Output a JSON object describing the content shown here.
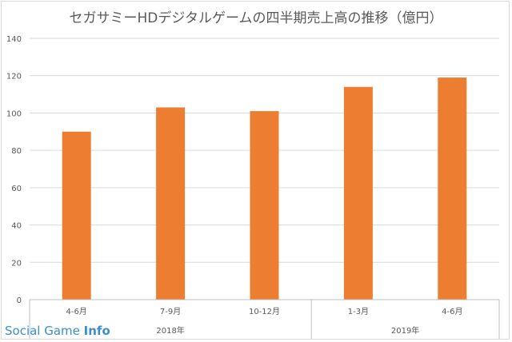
{
  "chart_data": {
    "type": "bar",
    "title": "セガサミーHDデジタルゲームの四半期売上高の推移（億円）",
    "categories": [
      "4-6月",
      "7-9月",
      "10-12月",
      "1-3月",
      "4-6月"
    ],
    "groups": [
      {
        "label": "2018年",
        "start": 0,
        "end": 3
      },
      {
        "label": "2019年",
        "start": 3,
        "end": 5
      }
    ],
    "values": [
      90,
      103,
      101,
      114,
      119
    ],
    "ylim": [
      0,
      140
    ],
    "yticks": [
      0,
      20,
      40,
      60,
      80,
      100,
      120,
      140
    ],
    "grid": true,
    "bar_color": "#ed7d31"
  },
  "watermark": {
    "text": "Social Game ",
    "bold": "Info"
  }
}
